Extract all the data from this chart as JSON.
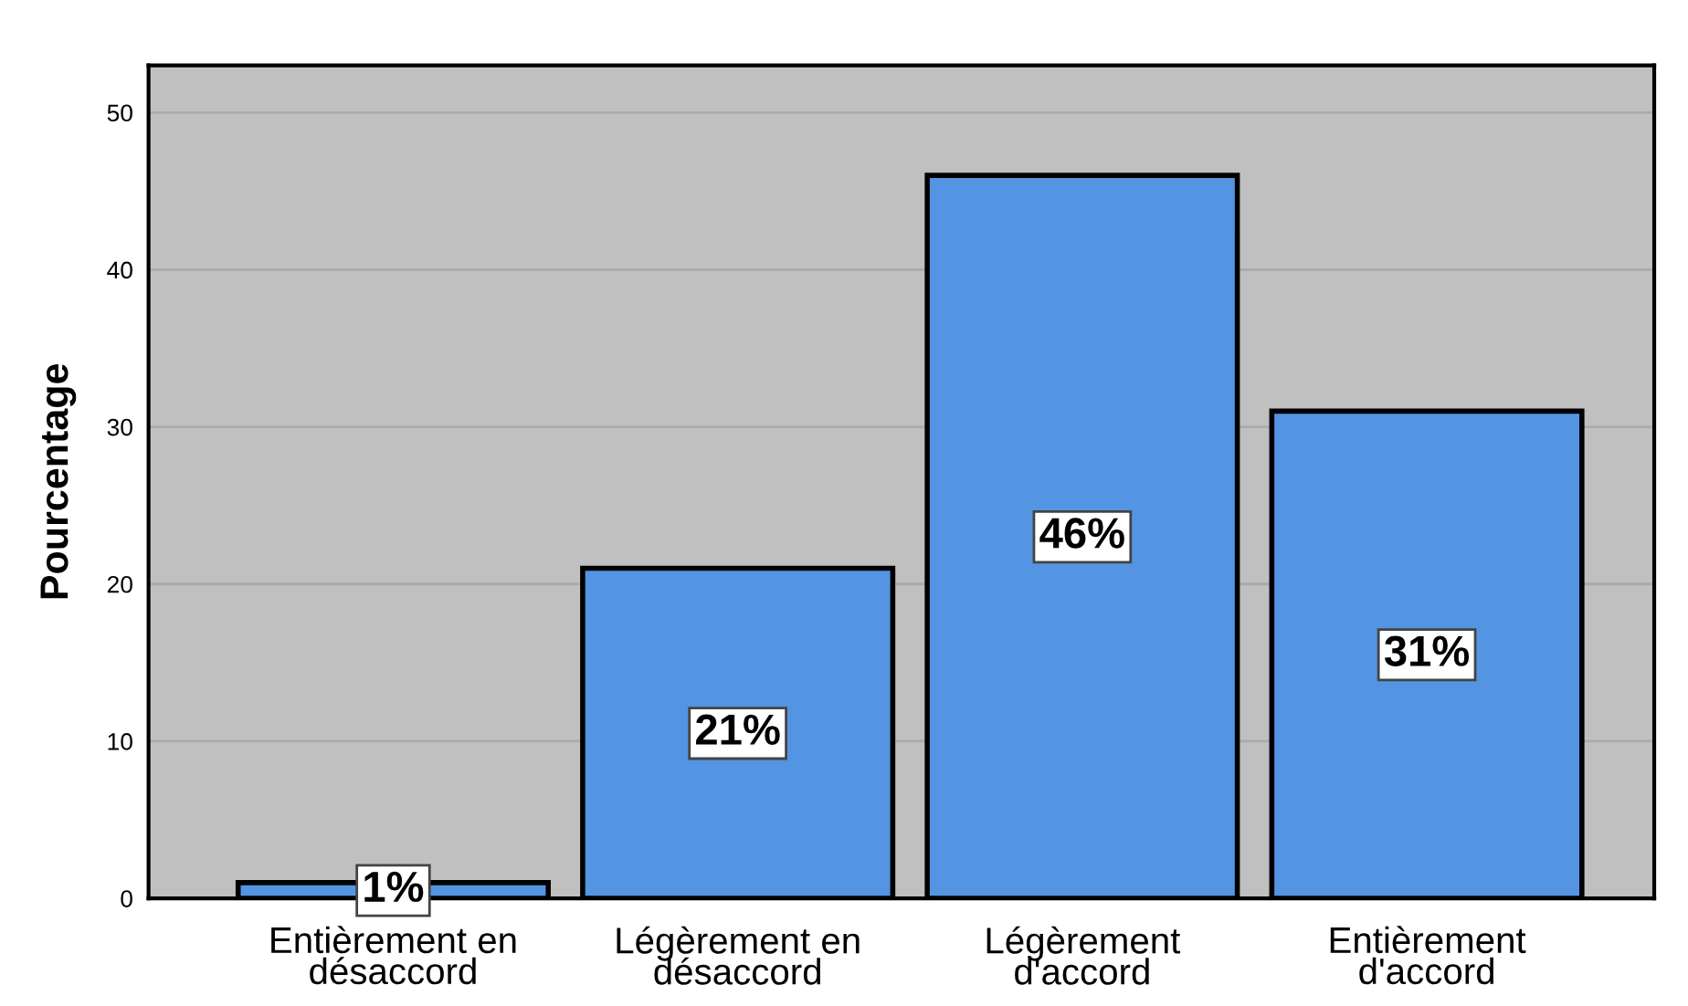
{
  "chart_data": {
    "type": "bar",
    "ylabel": "Pourcentage",
    "categories": [
      "Entièrement en\ndésaccord",
      "Légèrement en\ndésaccord",
      "Légèrement\nd'accord",
      "Entièrement\nd'accord"
    ],
    "values": [
      1,
      21,
      46,
      31
    ],
    "color": "#5495e3",
    "value_labels": [
      "1%",
      "21%",
      "46%",
      "31%"
    ],
    "ylim": [
      0,
      53
    ],
    "yticks": [
      0,
      10,
      20,
      30,
      40,
      50
    ],
    "grid": "y"
  }
}
